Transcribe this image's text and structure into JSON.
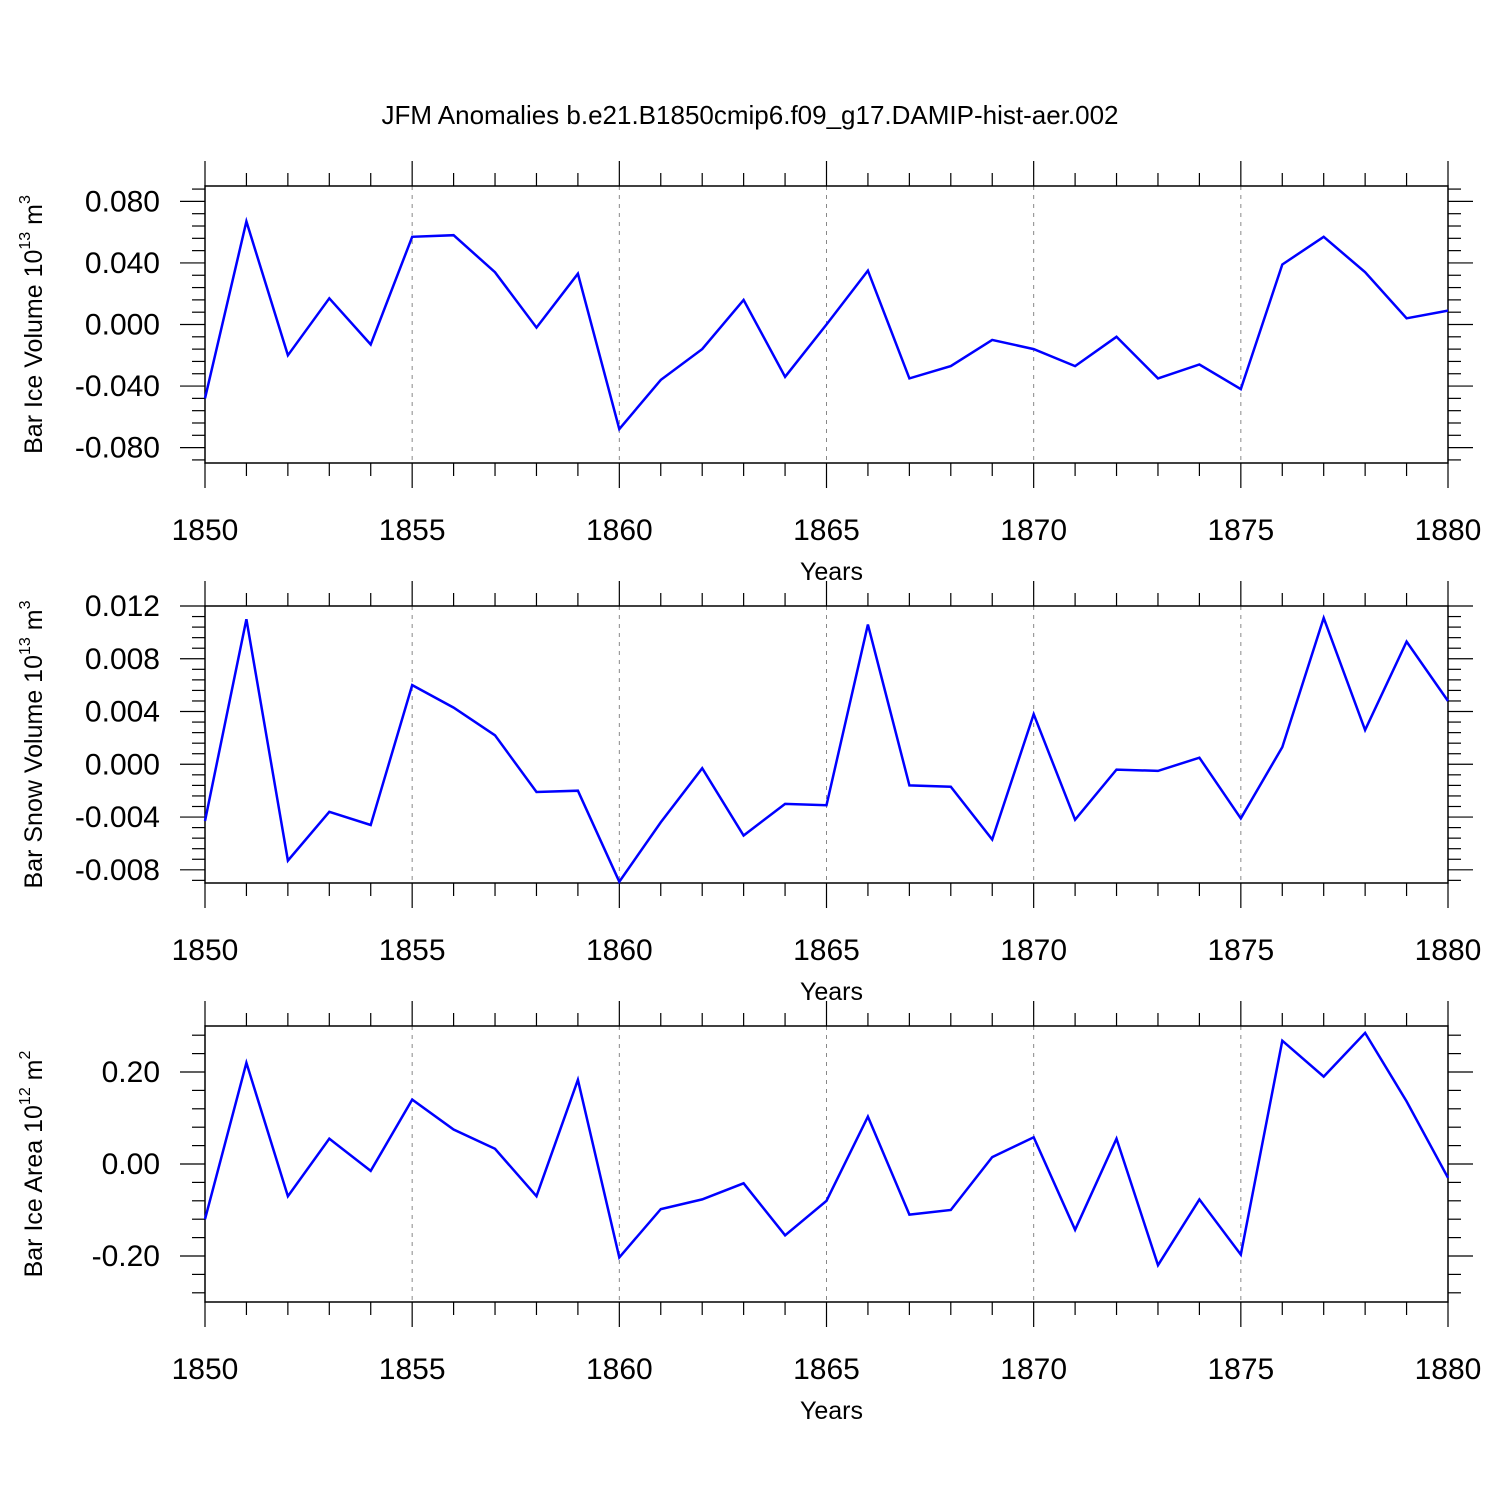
{
  "title": "JFM Anomalies b.e21.B1850cmip6.f09_g17.DAMIP-hist-aer.002",
  "line_color": "#0000ff",
  "chart_data": [
    {
      "type": "line",
      "xlabel": "Years",
      "ylabel": {
        "main": "Bar Ice Volume 10",
        "exp": "13",
        "unit": " m",
        "unit_exp": "3"
      },
      "xlim": [
        1850,
        1880
      ],
      "ylim": [
        -0.09,
        0.09
      ],
      "x_ticks": [
        "1850",
        "1855",
        "1860",
        "1865",
        "1870",
        "1875",
        "1880"
      ],
      "y_ticks": [
        0.08,
        0.04,
        0.0,
        -0.04,
        -0.08
      ],
      "y_tick_labels": [
        "0.080",
        "0.040",
        "0.000",
        "-0.040",
        "-0.080"
      ],
      "grid": "vertical dashed at major x ticks",
      "x": [
        1850,
        1851,
        1852,
        1853,
        1854,
        1855,
        1856,
        1857,
        1858,
        1859,
        1860,
        1861,
        1862,
        1863,
        1864,
        1865,
        1866,
        1867,
        1868,
        1869,
        1870,
        1871,
        1872,
        1873,
        1874,
        1875,
        1876,
        1877,
        1878,
        1879,
        1880
      ],
      "values": [
        -0.048,
        0.067,
        -0.02,
        0.017,
        -0.013,
        0.057,
        0.058,
        0.034,
        -0.002,
        0.033,
        -0.068,
        -0.036,
        -0.016,
        0.016,
        -0.034,
        0.0,
        0.035,
        -0.035,
        -0.027,
        -0.01,
        -0.016,
        -0.027,
        -0.008,
        -0.035,
        -0.026,
        -0.042,
        0.039,
        0.057,
        0.034,
        0.004,
        0.009
      ]
    },
    {
      "type": "line",
      "xlabel": "Years",
      "ylabel": {
        "main": "Bar Snow Volume 10",
        "exp": "13",
        "unit": " m",
        "unit_exp": "3"
      },
      "xlim": [
        1850,
        1880
      ],
      "ylim": [
        -0.009,
        0.012
      ],
      "x_ticks": [
        "1850",
        "1855",
        "1860",
        "1865",
        "1870",
        "1875",
        "1880"
      ],
      "y_ticks": [
        0.012,
        0.008,
        0.004,
        0.0,
        -0.004,
        -0.008
      ],
      "y_tick_labels": [
        "0.012",
        "0.008",
        "0.004",
        "0.000",
        "-0.004",
        "-0.008"
      ],
      "grid": "vertical dashed at major x ticks",
      "x": [
        1850,
        1851,
        1852,
        1853,
        1854,
        1855,
        1856,
        1857,
        1858,
        1859,
        1860,
        1861,
        1862,
        1863,
        1864,
        1865,
        1866,
        1867,
        1868,
        1869,
        1870,
        1871,
        1872,
        1873,
        1874,
        1875,
        1876,
        1877,
        1878,
        1879,
        1880
      ],
      "values": [
        -0.0043,
        0.011,
        -0.0073,
        -0.0036,
        -0.0046,
        0.006,
        0.0043,
        0.0022,
        -0.0021,
        -0.002,
        -0.0089,
        -0.0044,
        -0.0003,
        -0.0054,
        -0.003,
        -0.0031,
        0.0106,
        -0.0016,
        -0.0017,
        -0.0057,
        0.0038,
        -0.0042,
        -0.0004,
        -0.0005,
        0.0005,
        -0.0041,
        0.0013,
        0.0111,
        0.0026,
        0.0093,
        0.0048
      ]
    },
    {
      "type": "line",
      "xlabel": "Years",
      "ylabel": {
        "main": "Bar Ice Area 10",
        "exp": "12",
        "unit": " m",
        "unit_exp": "2"
      },
      "xlim": [
        1850,
        1880
      ],
      "ylim": [
        -0.3,
        0.3
      ],
      "x_ticks": [
        "1850",
        "1855",
        "1860",
        "1865",
        "1870",
        "1875",
        "1880"
      ],
      "y_ticks": [
        0.2,
        0.0,
        -0.2
      ],
      "y_tick_labels": [
        "0.20",
        "0.00",
        "-0.20"
      ],
      "grid": "vertical dashed at major x ticks",
      "x": [
        1850,
        1851,
        1852,
        1853,
        1854,
        1855,
        1856,
        1857,
        1858,
        1859,
        1860,
        1861,
        1862,
        1863,
        1864,
        1865,
        1866,
        1867,
        1868,
        1869,
        1870,
        1871,
        1872,
        1873,
        1874,
        1875,
        1876,
        1877,
        1878,
        1879,
        1880
      ],
      "values": [
        -0.12,
        0.22,
        -0.07,
        0.055,
        -0.015,
        0.14,
        0.075,
        0.033,
        -0.07,
        0.183,
        -0.203,
        -0.098,
        -0.077,
        -0.042,
        -0.155,
        -0.08,
        0.103,
        -0.11,
        -0.1,
        0.015,
        0.058,
        -0.143,
        0.055,
        -0.22,
        -0.077,
        -0.197,
        0.268,
        0.19,
        0.285,
        0.136,
        -0.03
      ]
    }
  ]
}
